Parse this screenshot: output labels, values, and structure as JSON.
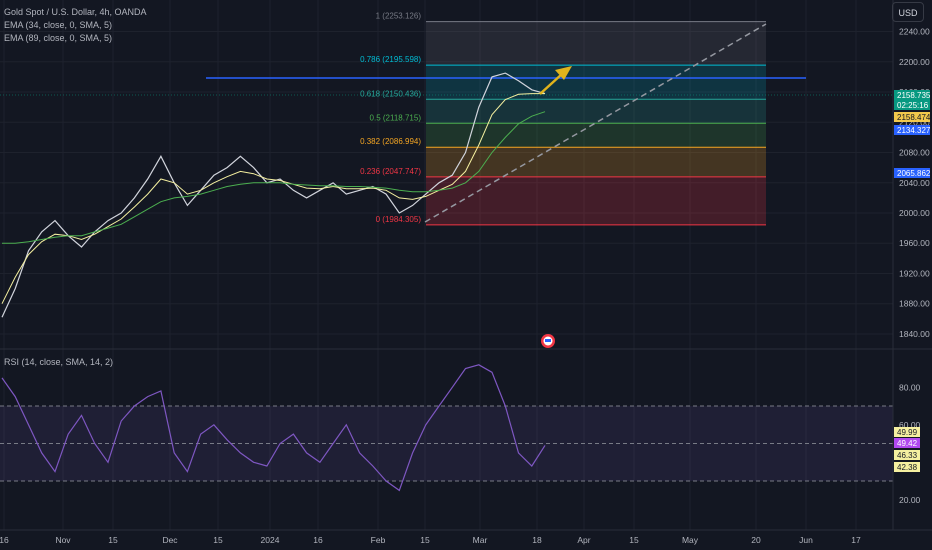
{
  "legend": {
    "symbol": "Gold Spot / U.S. Dollar, 4h, OANDA",
    "ema1": "EMA (34, close, 0, SMA, 5)",
    "ema2": "EMA (89, close, 0, SMA, 5)",
    "rsi": "RSI (14, close, SMA, 14, 2)"
  },
  "currency_button": "USD",
  "price_axis": [
    "2240.00",
    "2200.00",
    "2160.00",
    "2120.00",
    "2080.00",
    "2040.00",
    "2000.00",
    "1960.00",
    "1920.00",
    "1880.00",
    "1840.00"
  ],
  "rsi_axis": [
    "80.00",
    "60.00",
    "20.00"
  ],
  "time_axis": [
    "16",
    "Nov",
    "15",
    "Dec",
    "15",
    "2024",
    "16",
    "Feb",
    "15",
    "Mar",
    "18",
    "Apr",
    "15",
    "May",
    "20",
    "Jun",
    "17"
  ],
  "fib_levels": [
    {
      "ratio": "1",
      "price": "2253.126",
      "label": "1 (2253.126)"
    },
    {
      "ratio": "0.786",
      "price": "2195.598",
      "label": "0.786 (2195.598)"
    },
    {
      "ratio": "0.618",
      "price": "2150.436",
      "label": "0.618 (2150.436)"
    },
    {
      "ratio": "0.5",
      "price": "2118.715",
      "label": "0.5 (2118.715)"
    },
    {
      "ratio": "0.382",
      "price": "2086.994",
      "label": "0.382 (2086.994)"
    },
    {
      "ratio": "0.236",
      "price": "2047.747",
      "label": "0.236 (2047.747)"
    },
    {
      "ratio": "0",
      "price": "1984.305",
      "label": "0 (1984.305)"
    }
  ],
  "price_labels": [
    {
      "text": "2158.735",
      "bg": "#089981"
    },
    {
      "text": "02:25:16",
      "bg": "#089981"
    },
    {
      "text": "2158.474",
      "bg": "#f2c94c"
    },
    {
      "text": "2134.327",
      "bg": "#2962ff"
    },
    {
      "text": "2065.862",
      "bg": "#2962ff"
    }
  ],
  "rsi_labels": [
    {
      "text": "49.99",
      "bg": "#f5f0a0"
    },
    {
      "text": "49.42",
      "bg": "#b048f0"
    },
    {
      "text": "46.33",
      "bg": "#f5f0a0"
    },
    {
      "text": "42.38",
      "bg": "#f5f0a0"
    }
  ],
  "chart_data": {
    "type": "line",
    "x_ticks": [
      "16",
      "Nov",
      "15",
      "Dec",
      "15",
      "2024",
      "16",
      "Feb",
      "15",
      "Mar",
      "18",
      "Apr",
      "15",
      "May",
      "20",
      "Jun",
      "17"
    ],
    "ylim": [
      1820,
      2270
    ],
    "series": [
      {
        "name": "Gold Spot / U.S. Dollar",
        "x_start": "Oct 16",
        "values": [
          1862,
          1900,
          1950,
          1975,
          1990,
          1970,
          1955,
          1975,
          1990,
          2000,
          2020,
          2045,
          2075,
          2040,
          2010,
          2030,
          2050,
          2060,
          2075,
          2060,
          2040,
          2045,
          2030,
          2020,
          2030,
          2040,
          2025,
          2030,
          2035,
          2025,
          2000,
          2010,
          2025,
          2040,
          2050,
          2080,
          2140,
          2180,
          2185,
          2175,
          2163,
          2158
        ]
      },
      {
        "name": "EMA (34, close, 0, SMA, 5)",
        "values": [
          1880,
          1915,
          1945,
          1962,
          1972,
          1970,
          1965,
          1972,
          1982,
          1992,
          2008,
          2025,
          2045,
          2040,
          2025,
          2030,
          2040,
          2048,
          2055,
          2052,
          2045,
          2043,
          2038,
          2033,
          2032,
          2035,
          2032,
          2032,
          2033,
          2030,
          2020,
          2018,
          2022,
          2030,
          2038,
          2055,
          2090,
          2130,
          2150,
          2157,
          2158,
          2158
        ]
      },
      {
        "name": "EMA (89, close, 0, SMA, 5)",
        "values": [
          1960,
          1960,
          1962,
          1965,
          1968,
          1970,
          1970,
          1975,
          1980,
          1985,
          1995,
          2005,
          2015,
          2020,
          2022,
          2025,
          2030,
          2035,
          2038,
          2040,
          2040,
          2040,
          2038,
          2037,
          2036,
          2036,
          2035,
          2035,
          2034,
          2033,
          2030,
          2028,
          2028,
          2030,
          2033,
          2040,
          2055,
          2080,
          2100,
          2118,
          2128,
          2134
        ]
      }
    ],
    "rsi": {
      "name": "RSI (14, close, SMA, 14, 2)",
      "ylim": [
        0,
        100
      ],
      "levels": [
        70,
        50,
        30
      ],
      "values": [
        85,
        75,
        60,
        45,
        35,
        55,
        65,
        50,
        40,
        62,
        70,
        75,
        78,
        45,
        35,
        55,
        60,
        52,
        45,
        40,
        38,
        50,
        55,
        45,
        40,
        50,
        60,
        45,
        38,
        30,
        25,
        45,
        60,
        70,
        80,
        90,
        92,
        88,
        70,
        45,
        38,
        49
      ]
    }
  }
}
